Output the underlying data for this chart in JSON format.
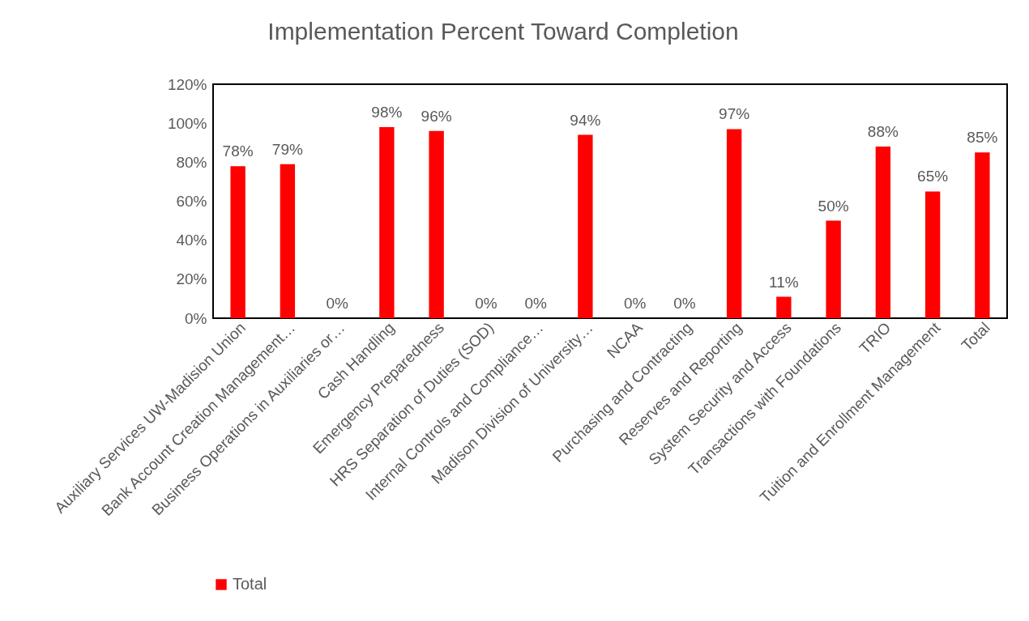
{
  "chart_data": {
    "type": "bar",
    "title": "Implementation Percent Toward Completion",
    "categories": [
      "Auxiliary Services UW-Madision Union",
      "Bank Account Creation Management…",
      "Business Operations in Auxiliaries or…",
      "Cash Handling",
      "Emergency Preparedness",
      "HRS Separation of Duties (SOD)",
      "Internal Controls and Compliance…",
      "Madison Division of University…",
      "NCAA",
      "Purchasing and Contracting",
      "Reserves and Reporting",
      "System Security and Access",
      "Transactions with Foundations",
      "TRIO",
      "Tuition and Enrollment Management",
      "Total"
    ],
    "series": [
      {
        "name": "Total",
        "color": "#ff0000",
        "values": [
          78,
          79,
          0,
          98,
          96,
          0,
          0,
          94,
          0,
          0,
          97,
          11,
          50,
          88,
          65,
          85
        ],
        "value_labels": [
          "78%",
          "79%",
          "0%",
          "98%",
          "96%",
          "0%",
          "0%",
          "94%",
          "0%",
          "0%",
          "97%",
          "11%",
          "50%",
          "88%",
          "65%",
          "85%"
        ]
      }
    ],
    "ylim": [
      0,
      120
    ],
    "yticks": [
      {
        "value": 0,
        "label": "0%"
      },
      {
        "value": 20,
        "label": "20%"
      },
      {
        "value": 40,
        "label": "40%"
      },
      {
        "value": 60,
        "label": "60%"
      },
      {
        "value": 80,
        "label": "80%"
      },
      {
        "value": 100,
        "label": "100%"
      },
      {
        "value": 120,
        "label": "120%"
      }
    ],
    "grid": false,
    "legend": "bottom"
  }
}
